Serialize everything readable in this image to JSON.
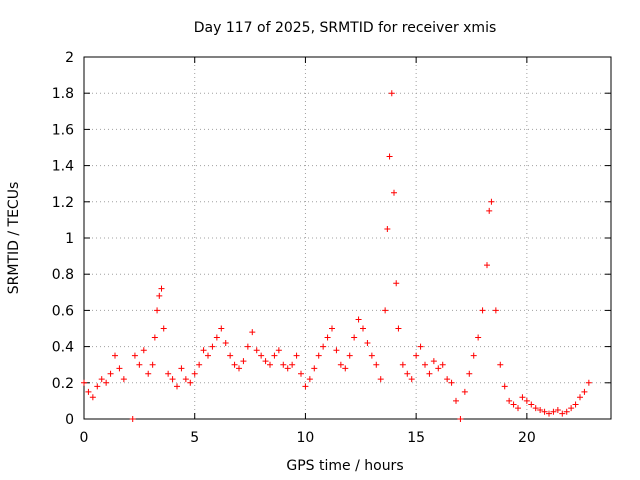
{
  "chart_data": {
    "type": "scatter",
    "title": "Day 117 of 2025, SRMTID for receiver xmis",
    "xlabel": "GPS time / hours",
    "ylabel": "SRMTID / TECUs",
    "xlim": [
      0,
      23.8
    ],
    "ylim": [
      0,
      2
    ],
    "xticks": [
      0,
      5,
      10,
      15,
      20
    ],
    "yticks": [
      0,
      0.2,
      0.4,
      0.6,
      0.8,
      1,
      1.2,
      1.4,
      1.6,
      1.8,
      2
    ],
    "xtick_labels": [
      "0",
      "5",
      "10",
      "15",
      "20"
    ],
    "ytick_labels": [
      "0",
      "0.2",
      "0.4",
      "0.6",
      "0.8",
      "1",
      "1.2",
      "1.4",
      "1.6",
      "1.8",
      "2"
    ],
    "grid": true,
    "marker": "+",
    "color": "#ff0000",
    "series": [
      {
        "name": "SRMTID",
        "x": [
          0.0,
          0.2,
          0.4,
          0.6,
          0.8,
          1.0,
          1.2,
          1.4,
          1.6,
          1.8,
          2.2,
          2.3,
          2.5,
          2.7,
          2.9,
          3.1,
          3.2,
          3.3,
          3.4,
          3.5,
          3.6,
          3.8,
          4.0,
          4.2,
          4.4,
          4.6,
          4.8,
          5.0,
          5.2,
          5.4,
          5.6,
          5.8,
          6.0,
          6.2,
          6.4,
          6.6,
          6.8,
          7.0,
          7.2,
          7.4,
          7.6,
          7.8,
          8.0,
          8.2,
          8.4,
          8.6,
          8.8,
          9.0,
          9.2,
          9.4,
          9.6,
          9.8,
          10.0,
          10.2,
          10.4,
          10.6,
          10.8,
          11.0,
          11.2,
          11.4,
          11.6,
          11.8,
          12.0,
          12.2,
          12.4,
          12.6,
          12.8,
          13.0,
          13.2,
          13.4,
          13.6,
          13.7,
          13.8,
          13.9,
          14.0,
          14.1,
          14.2,
          14.4,
          14.6,
          14.8,
          15.0,
          15.2,
          15.4,
          15.6,
          15.8,
          16.0,
          16.2,
          16.4,
          16.6,
          16.8,
          17.0,
          17.2,
          17.4,
          17.6,
          17.8,
          18.0,
          18.2,
          18.3,
          18.4,
          18.6,
          18.8,
          19.0,
          19.2,
          19.4,
          19.6,
          19.8,
          20.0,
          20.2,
          20.4,
          20.6,
          20.8,
          21.0,
          21.2,
          21.4,
          21.6,
          21.8,
          22.0,
          22.2,
          22.4,
          22.6,
          22.8
        ],
        "y": [
          0.2,
          0.15,
          0.12,
          0.18,
          0.22,
          0.2,
          0.25,
          0.35,
          0.28,
          0.22,
          0.0,
          0.35,
          0.3,
          0.38,
          0.25,
          0.3,
          0.45,
          0.6,
          0.68,
          0.72,
          0.5,
          0.25,
          0.22,
          0.18,
          0.28,
          0.22,
          0.2,
          0.25,
          0.3,
          0.38,
          0.35,
          0.4,
          0.45,
          0.5,
          0.42,
          0.35,
          0.3,
          0.28,
          0.32,
          0.4,
          0.48,
          0.38,
          0.35,
          0.32,
          0.3,
          0.35,
          0.38,
          0.3,
          0.28,
          0.3,
          0.35,
          0.25,
          0.18,
          0.22,
          0.28,
          0.35,
          0.4,
          0.45,
          0.5,
          0.38,
          0.3,
          0.28,
          0.35,
          0.45,
          0.55,
          0.5,
          0.42,
          0.35,
          0.3,
          0.22,
          0.6,
          1.05,
          1.45,
          1.8,
          1.25,
          0.75,
          0.5,
          0.3,
          0.25,
          0.22,
          0.35,
          0.4,
          0.3,
          0.25,
          0.32,
          0.28,
          0.3,
          0.22,
          0.2,
          0.1,
          0.0,
          0.15,
          0.25,
          0.35,
          0.45,
          0.6,
          0.85,
          1.15,
          1.2,
          0.6,
          0.3,
          0.18,
          0.1,
          0.08,
          0.06,
          0.12,
          0.1,
          0.08,
          0.06,
          0.05,
          0.04,
          0.03,
          0.04,
          0.05,
          0.03,
          0.04,
          0.06,
          0.08,
          0.12,
          0.15,
          0.2
        ]
      }
    ]
  }
}
